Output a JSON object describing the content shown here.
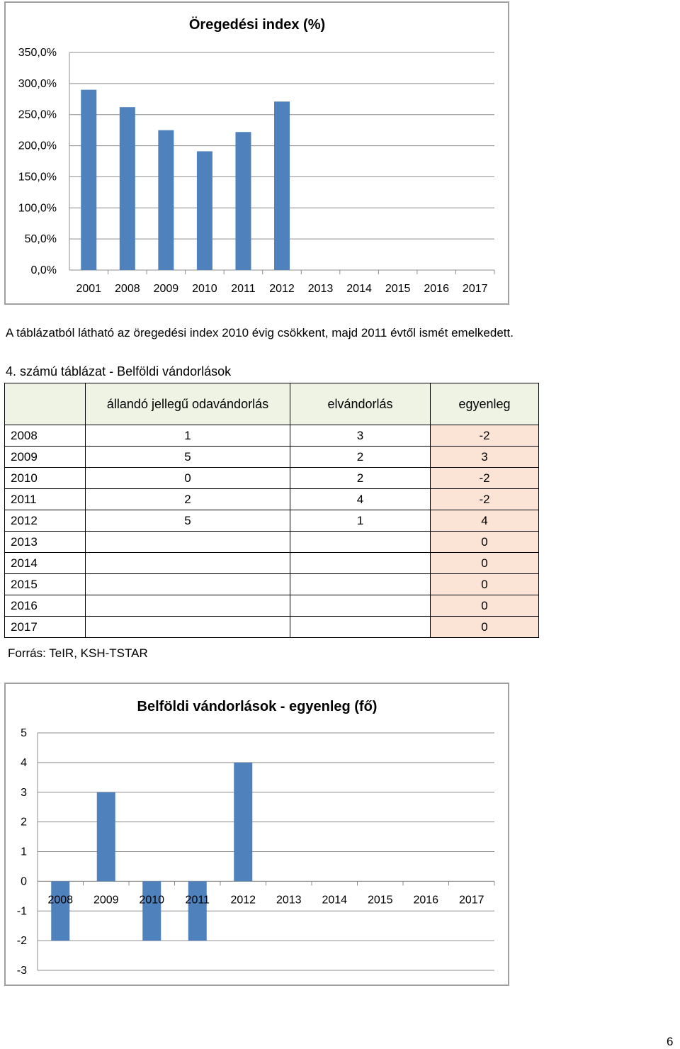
{
  "chart_data": [
    {
      "type": "bar",
      "title": "Öregedési index (%)",
      "categories": [
        "2001",
        "2008",
        "2009",
        "2010",
        "2011",
        "2012",
        "2013",
        "2014",
        "2015",
        "2016",
        "2017"
      ],
      "values": [
        290,
        262,
        225,
        191,
        222,
        271,
        null,
        null,
        null,
        null,
        null
      ],
      "ylim": [
        0,
        350
      ],
      "ytick_labels": [
        "0,0%",
        "50,0%",
        "100,0%",
        "150,0%",
        "200,0%",
        "250,0%",
        "300,0%",
        "350,0%"
      ],
      "bar_color": "#4f81bd",
      "grid": true
    },
    {
      "type": "bar",
      "title": "Belföldi vándorlások - egyenleg (fő)",
      "categories": [
        "2008",
        "2009",
        "2010",
        "2011",
        "2012",
        "2013",
        "2014",
        "2015",
        "2016",
        "2017"
      ],
      "values": [
        -2,
        3,
        -2,
        -2,
        4,
        0,
        0,
        0,
        0,
        0
      ],
      "ylim": [
        -3,
        5
      ],
      "ytick_labels": [
        "-3",
        "-2",
        "-1",
        "0",
        "1",
        "2",
        "3",
        "4",
        "5"
      ],
      "bar_color": "#4f81bd",
      "grid": true
    }
  ],
  "paragraph": "A táblázatból látható az öregedési index 2010 évig csökkent, majd 2011 évtől ismét emelkedett.",
  "table_caption": "4. számú táblázat - Belföldi vándorlások",
  "table": {
    "headers": [
      "",
      "állandó jellegű odavándorlás",
      "elvándorlás",
      "egyenleg"
    ],
    "rows": [
      [
        "2008",
        "1",
        "3",
        "-2"
      ],
      [
        "2009",
        "5",
        "2",
        "3"
      ],
      [
        "2010",
        "0",
        "2",
        "-2"
      ],
      [
        "2011",
        "2",
        "4",
        "-2"
      ],
      [
        "2012",
        "5",
        "1",
        "4"
      ],
      [
        "2013",
        "",
        "",
        "0"
      ],
      [
        "2014",
        "",
        "",
        "0"
      ],
      [
        "2015",
        "",
        "",
        "0"
      ],
      [
        "2016",
        "",
        "",
        "0"
      ],
      [
        "2017",
        "",
        "",
        "0"
      ]
    ]
  },
  "source": "Forrás: TeIR, KSH-TSTAR",
  "page_number": "6"
}
